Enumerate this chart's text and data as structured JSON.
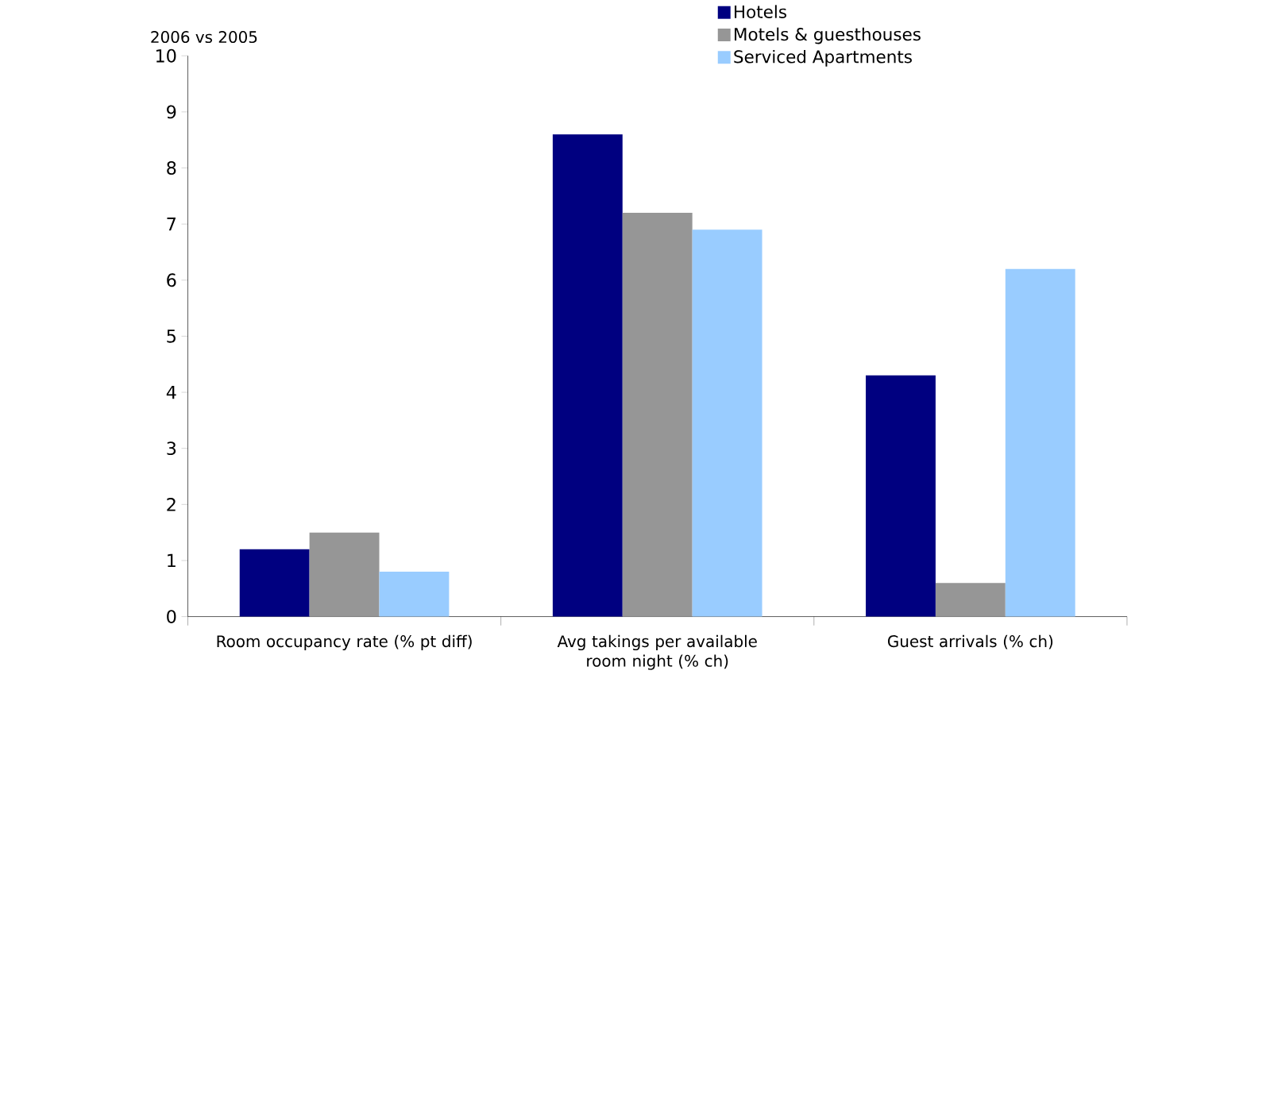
{
  "chart_data": {
    "type": "bar",
    "ylabel": "2006 vs 2005",
    "categories": [
      "Room occupancy rate (% pt diff)",
      "Avg takings per available room night (% ch)",
      "Guest arrivals (% ch)"
    ],
    "series": [
      {
        "name": "Hotels",
        "color": "#000080",
        "values": [
          1.2,
          8.6,
          4.3
        ]
      },
      {
        "name": "Motels & guesthouses",
        "color": "#969696",
        "values": [
          1.5,
          7.2,
          0.6
        ]
      },
      {
        "name": "Serviced Apartments",
        "color": "#99ccff",
        "values": [
          0.8,
          6.9,
          6.2
        ]
      }
    ],
    "ylim": [
      0,
      10
    ],
    "yticks": [
      0,
      1,
      2,
      3,
      4,
      5,
      6,
      7,
      8,
      9,
      10
    ],
    "grid": false,
    "legend": "top right"
  }
}
